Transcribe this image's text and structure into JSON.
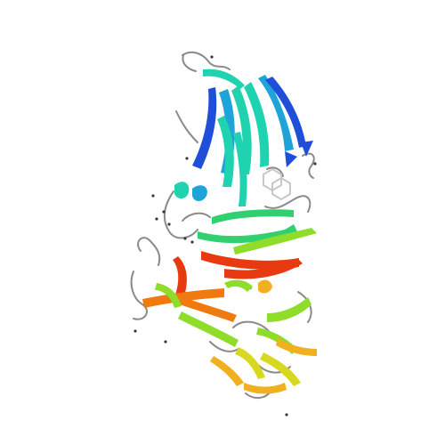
{
  "image": {
    "subject": "protein-ribbon-structure",
    "background_color": "#ffffff",
    "coloring": "rainbow-n-to-c",
    "palette": [
      "#1f4fd8",
      "#1fa3d8",
      "#1fd3b0",
      "#30d070",
      "#8fdc2a",
      "#d8d820",
      "#f0b020",
      "#f07a10",
      "#e83a10"
    ],
    "coil_color": "#8a8a8a",
    "ligand_color": "#c8c8c8",
    "water_color": "#3b3b3b"
  }
}
